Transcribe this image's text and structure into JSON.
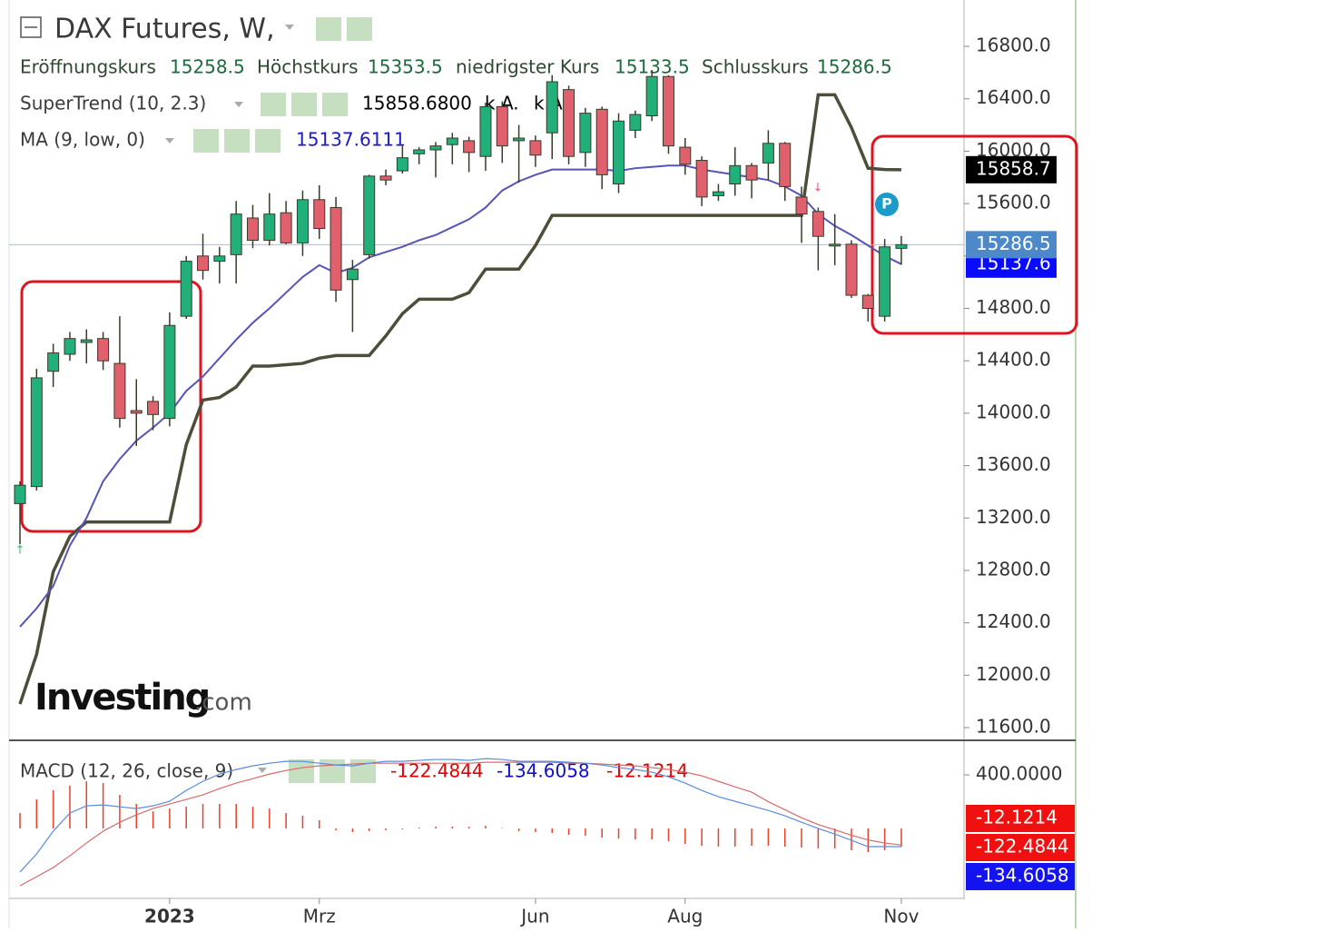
{
  "chart_data": [
    {
      "type": "candlestick",
      "title": "DAX Futures, W,",
      "ohlc_header": [
        {
          "label": "Eröffnungskurs",
          "value": "15258.5"
        },
        {
          "label": "Höchstkurs",
          "value": "15353.5"
        },
        {
          "label": "niedrigster Kurs",
          "value": "15133.5"
        },
        {
          "label": "Schlusskurs",
          "value": "15286.5"
        }
      ],
      "categories": [
        null,
        null,
        null,
        null,
        null,
        null,
        null,
        null,
        null,
        "2023",
        null,
        null,
        null,
        null,
        null,
        null,
        null,
        null,
        "Mrz",
        null,
        null,
        null,
        null,
        null,
        null,
        null,
        null,
        null,
        null,
        null,
        null,
        "Jun",
        null,
        null,
        null,
        null,
        null,
        null,
        null,
        null,
        "Aug",
        null,
        null,
        null,
        null,
        null,
        null,
        null,
        null,
        null,
        null,
        null,
        null,
        "Nov"
      ],
      "open": [
        13310,
        13440,
        14320,
        14450,
        14540,
        14570,
        14380,
        14020,
        14090,
        13960,
        14740,
        15200,
        15160,
        15210,
        15490,
        15320,
        15530,
        15300,
        15630,
        15570,
        15020,
        15210,
        15810,
        15850,
        15980,
        16010,
        16050,
        16080,
        15960,
        16340,
        16080,
        16080,
        16140,
        16470,
        15990,
        16320,
        15750,
        16160,
        16270,
        16570,
        16030,
        15930,
        15660,
        15750,
        15890,
        15910,
        16060,
        15650,
        15540,
        15280,
        15290,
        14900,
        14740,
        15258.5
      ],
      "high": [
        13480,
        14340,
        14530,
        14620,
        14640,
        14620,
        14740,
        14260,
        14130,
        14770,
        15200,
        15370,
        15270,
        15620,
        15590,
        15680,
        15620,
        15700,
        15740,
        15650,
        15170,
        15820,
        15860,
        16040,
        16030,
        16070,
        16140,
        16110,
        16370,
        16380,
        16200,
        16120,
        16580,
        16500,
        16330,
        16340,
        16290,
        16310,
        16620,
        16580,
        16100,
        15960,
        15750,
        16030,
        15910,
        16160,
        16070,
        15730,
        15570,
        15520,
        15320,
        14910,
        15330,
        15353.5
      ],
      "low": [
        13000,
        13410,
        14200,
        14400,
        14380,
        14330,
        13890,
        13750,
        13870,
        13900,
        14720,
        15020,
        14990,
        14990,
        15260,
        15280,
        15290,
        15200,
        15330,
        14850,
        14620,
        15180,
        15740,
        15830,
        15900,
        15800,
        15900,
        15840,
        15850,
        15910,
        15760,
        15880,
        15940,
        15900,
        15880,
        15710,
        15680,
        16100,
        16230,
        15980,
        15820,
        15580,
        15620,
        15660,
        15640,
        15780,
        15620,
        15300,
        15090,
        15130,
        14880,
        14700,
        14700,
        15133.5
      ],
      "close": [
        13450,
        14270,
        14460,
        14570,
        14560,
        14400,
        13960,
        14000,
        13990,
        14670,
        15160,
        15090,
        15200,
        15520,
        15320,
        15520,
        15300,
        15630,
        15410,
        14940,
        15100,
        15810,
        15780,
        15950,
        16010,
        16040,
        16100,
        15990,
        16340,
        16040,
        16100,
        15970,
        16530,
        15960,
        16290,
        15820,
        16230,
        16280,
        16570,
        16040,
        15900,
        15650,
        15690,
        15890,
        15780,
        16060,
        15730,
        15520,
        15350,
        15290,
        14900,
        14800,
        15270,
        15286.5
      ],
      "up_color": "#22b07a",
      "down_color": "#e0606e",
      "ylim": [
        11503,
        17154
      ],
      "yticks": [
        {
          "value": 11600,
          "label": "11600.0"
        },
        {
          "value": 12000,
          "label": "12000.0"
        },
        {
          "value": 12400,
          "label": "12400.0"
        },
        {
          "value": 12800,
          "label": "12800.0"
        },
        {
          "value": 13200,
          "label": "13200.0"
        },
        {
          "value": 13600,
          "label": "13600.0"
        },
        {
          "value": 14000,
          "label": "14000.0"
        },
        {
          "value": 14400,
          "label": "14400.0"
        },
        {
          "value": 14800,
          "label": "14800.0"
        },
        {
          "value": 15200,
          "label": "15200.0"
        },
        {
          "value": 15600,
          "label": "15600.0"
        },
        {
          "value": 16000,
          "label": "16000.0"
        },
        {
          "value": 16400,
          "label": "16400.0"
        },
        {
          "value": 16800,
          "label": "16800.0"
        }
      ],
      "close_badge": "15286.5",
      "close_badge_color": "#4d88c8",
      "close_line_color": "#9cc3e6",
      "indicators": [
        {
          "name": "SuperTrend (10, 2.3)",
          "color": "#4d4d3a",
          "values": [
            11780,
            12160,
            12790,
            13060,
            13170,
            13170,
            13170,
            13170,
            13170,
            13170,
            13760,
            14100,
            14120,
            14200,
            14360,
            14360,
            14370,
            14380,
            14420,
            14440,
            14440,
            14440,
            14590,
            14760,
            14870,
            14870,
            14870,
            14920,
            15100,
            15100,
            15100,
            15280,
            15510,
            15510,
            15510,
            15510,
            15510,
            15510,
            15510,
            15510,
            15510,
            15510,
            15510,
            15510,
            15510,
            15510,
            15510,
            15510,
            16430,
            16430,
            16180,
            15870,
            15860,
            15858.68
          ],
          "legend_values": [
            "15858.6800",
            "k.A.",
            "k.A."
          ],
          "legend_color": "#000000",
          "badge": "15858.7",
          "badge_color": "#000000"
        },
        {
          "name": "MA (9, low, 0)",
          "color": "#5555b8",
          "values": [
            12370,
            12510,
            12680,
            12990,
            13200,
            13480,
            13650,
            13790,
            13890,
            14000,
            14170,
            14280,
            14420,
            14560,
            14690,
            14800,
            14920,
            15040,
            15130,
            15070,
            15110,
            15190,
            15230,
            15270,
            15320,
            15360,
            15420,
            15480,
            15570,
            15700,
            15770,
            15820,
            15860,
            15860,
            15860,
            15860,
            15850,
            15870,
            15880,
            15890,
            15890,
            15860,
            15840,
            15820,
            15800,
            15780,
            15730,
            15660,
            15520,
            15430,
            15360,
            15280,
            15200,
            15137.6111
          ],
          "legend_values": [
            "15137.6111"
          ],
          "legend_color": "#1a1ac8",
          "badge": "15137.6",
          "badge_color": "#0a0aff"
        }
      ],
      "watermark": [
        "Investing",
        ".com"
      ],
      "marker": "P",
      "signal_up": "↑",
      "signal_down": "↓"
    },
    {
      "type": "macd",
      "title": "MACD (12, 26, close, 9)",
      "legend_values": [
        {
          "text": "-122.4844",
          "color": "#e00000"
        },
        {
          "text": "-134.6058",
          "color": "#1010c0"
        },
        {
          "text": "-12.1214",
          "color": "#e00000"
        }
      ],
      "badges": [
        {
          "text": "-12.1214",
          "color": "#f01010"
        },
        {
          "text": "-122.4844",
          "color": "#f01010"
        },
        {
          "text": "-134.6058",
          "color": "#1414f0"
        }
      ],
      "ylim": [
        -514,
        644
      ],
      "yticks": [
        {
          "value": 400,
          "label": "400.0000"
        }
      ],
      "y2lim": [
        -46,
        57.6
      ],
      "macd": {
        "color": "#5a8be0",
        "values": [
          -325,
          -190,
          -20,
          115,
          169,
          176,
          162,
          149,
          169,
          203,
          284,
          352,
          406,
          440,
          467,
          487,
          501,
          501,
          487,
          474,
          467,
          487,
          501,
          501,
          508,
          515,
          515,
          508,
          521,
          515,
          501,
          501,
          501,
          494,
          487,
          474,
          454,
          440,
          420,
          386,
          339,
          284,
          237,
          203,
          169,
          135,
          95,
          47,
          0,
          -41,
          -88,
          -135,
          -135,
          -134.6058
        ]
      },
      "signal": {
        "color": "#d86a6a",
        "values": [
          -427,
          -359,
          -291,
          -203,
          -108,
          -20,
          47,
          102,
          149,
          183,
          217,
          251,
          298,
          339,
          372,
          406,
          433,
          454,
          467,
          474,
          481,
          487,
          487,
          487,
          487,
          487,
          487,
          487,
          494,
          494,
          494,
          494,
          494,
          487,
          487,
          481,
          474,
          467,
          454,
          440,
          420,
          393,
          352,
          311,
          271,
          200,
          140,
          80,
          30,
          -10,
          -50,
          -85,
          -108,
          -122.4844
        ]
      },
      "histogram": {
        "color": "#e8402a",
        "axis": "y2",
        "values": [
          10.3,
          19.4,
          25.5,
          28.5,
          31.5,
          30.3,
          22.4,
          16.4,
          11.5,
          13.3,
          14.5,
          16.4,
          16.4,
          16.4,
          14.5,
          13.3,
          10.3,
          8.5,
          5.5,
          -1.2,
          -2.4,
          -1.8,
          -1.2,
          -0.6,
          0.6,
          1.2,
          1.2,
          1.2,
          1.8,
          0.3,
          -1.8,
          -2.4,
          -3.0,
          -4.2,
          -4.8,
          -6.1,
          -6.7,
          -7.3,
          -7.3,
          -8.5,
          -10.3,
          -11.5,
          -12.1,
          -12.1,
          -11.5,
          -11.5,
          -12.1,
          -12.7,
          -13.3,
          -13.3,
          -14.5,
          -15.8,
          -14.5,
          -12.1214
        ]
      }
    }
  ]
}
